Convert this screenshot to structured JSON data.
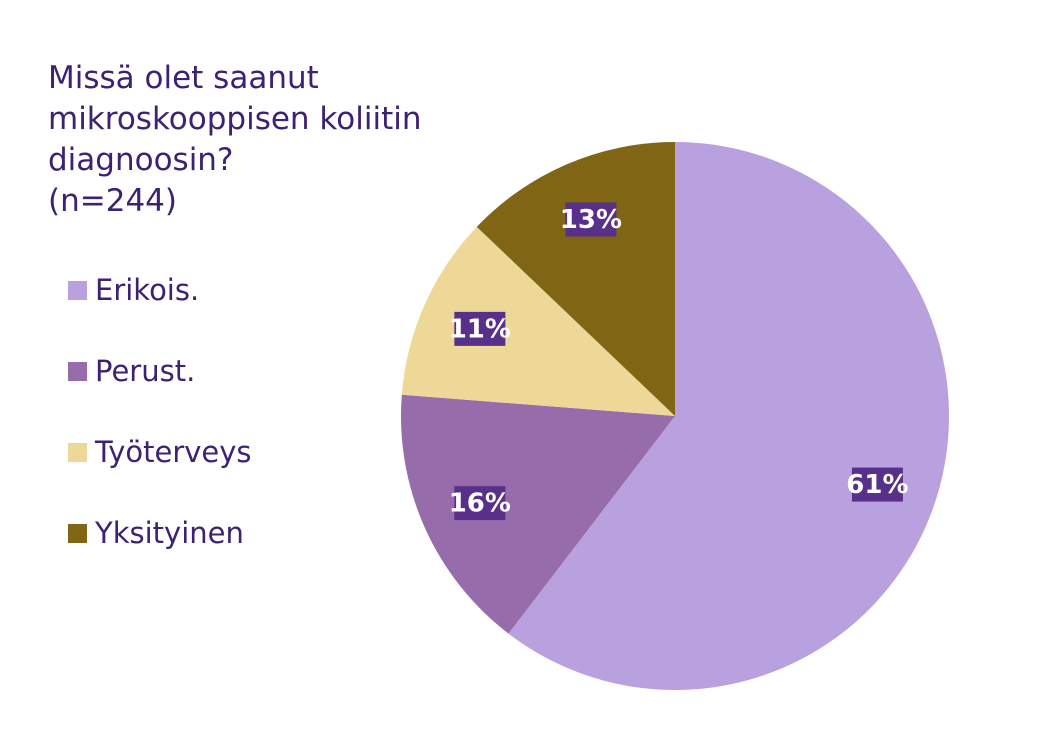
{
  "chart_data": {
    "type": "pie",
    "title_lines": [
      "Missä olet saanut",
      "mikroskooppisen koliitin",
      "diagnoosin?",
      "(n=244)"
    ],
    "categories": [
      "Erikois.",
      "Perust.",
      "Työterveys",
      "Yksityinen"
    ],
    "values": [
      61,
      16,
      11,
      13
    ],
    "data_labels": [
      "61%",
      "16%",
      "11%",
      "13%"
    ],
    "colors": [
      "#b9a0df",
      "#976cab",
      "#edd897",
      "#7f6514"
    ],
    "label_background": "#58308a",
    "legend_position": "left"
  }
}
